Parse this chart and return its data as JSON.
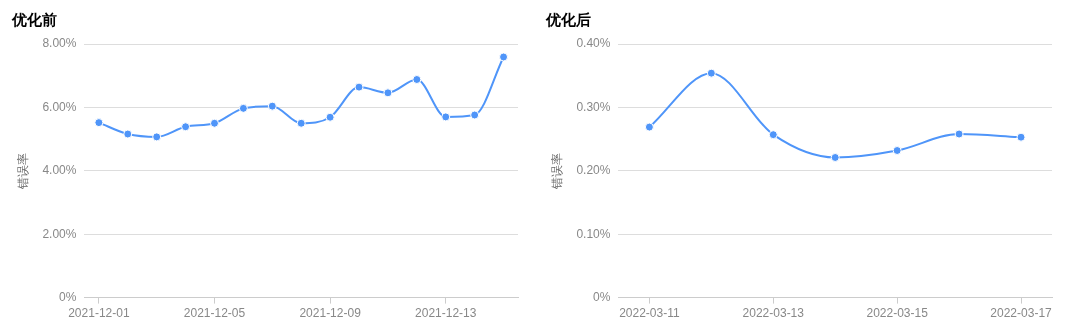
{
  "chart_data": [
    {
      "type": "line",
      "title": "优化前",
      "ylabel": "错误率",
      "categories": [
        "2021-12-01",
        null,
        null,
        null,
        "2021-12-05",
        null,
        null,
        null,
        "2021-12-09",
        null,
        null,
        null,
        "2021-12-13",
        null,
        null
      ],
      "series": [
        {
          "color": "#4f95f9",
          "values": [
            5.52,
            5.16,
            5.07,
            5.39,
            5.5,
            5.97,
            6.04,
            5.5,
            5.69,
            6.64,
            6.46,
            6.88,
            5.7,
            5.76,
            7.59
          ]
        }
      ],
      "ylim": [
        0,
        8
      ],
      "yticks": [
        {
          "value": 0,
          "label": "0%"
        },
        {
          "value": 2,
          "label": "2.00%"
        },
        {
          "value": 4,
          "label": "4.00%"
        },
        {
          "value": 6,
          "label": "6.00%"
        },
        {
          "value": 8,
          "label": "8.00%"
        }
      ],
      "grid": "y",
      "legend": false,
      "marker": "circle"
    },
    {
      "type": "line",
      "title": "优化后",
      "ylabel": "错误率",
      "categories": [
        "2022-03-11",
        null,
        "2022-03-13",
        null,
        "2022-03-15",
        null,
        "2022-03-17"
      ],
      "series": [
        {
          "color": "#4f95f9",
          "values": [
            0.269,
            0.354,
            0.257,
            0.221,
            0.232,
            0.258,
            0.253
          ]
        }
      ],
      "ylim": [
        0,
        0.4
      ],
      "yticks": [
        {
          "value": 0,
          "label": "0%"
        },
        {
          "value": 0.1,
          "label": "0.10%"
        },
        {
          "value": 0.2,
          "label": "0.20%"
        },
        {
          "value": 0.3,
          "label": "0.30%"
        },
        {
          "value": 0.4,
          "label": "0.40%"
        }
      ],
      "grid": "y",
      "legend": false,
      "marker": "circle"
    }
  ]
}
